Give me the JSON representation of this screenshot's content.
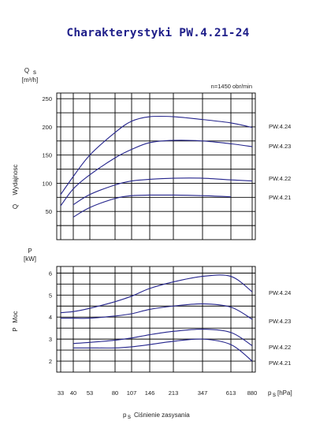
{
  "title": "Charakterystyki PW.4.21-24",
  "chart_data": [
    {
      "type": "line",
      "title": "Charakterystyki PW.4.21-24",
      "ylabel_symbol": "Q",
      "ylabel_sub": "s",
      "ylabel_unit": "[m³/h]",
      "ylabel_text": "Wydajnosc",
      "annotation": "n=1450 obr/min",
      "ylim": [
        0,
        260
      ],
      "yticks": [
        50,
        100,
        150,
        200,
        250
      ],
      "x_scale": "log",
      "grid": true,
      "series": [
        {
          "name": "PW.4.24",
          "x": [
            33,
            40,
            53,
            80,
            107,
            146,
            213,
            347,
            613,
            880
          ],
          "y": [
            80,
            112,
            150,
            190,
            210,
            218,
            218,
            213,
            207,
            199
          ]
        },
        {
          "name": "PW.4.23",
          "x": [
            33,
            40,
            53,
            80,
            107,
            146,
            213,
            347,
            613,
            880
          ],
          "y": [
            60,
            90,
            115,
            145,
            160,
            172,
            176,
            175,
            170,
            165
          ]
        },
        {
          "name": "PW.4.22",
          "x": [
            40,
            53,
            80,
            107,
            146,
            213,
            347,
            613,
            880
          ],
          "y": [
            62,
            80,
            97,
            104,
            107,
            109,
            109,
            106,
            104
          ]
        },
        {
          "name": "PW.4.21",
          "x": [
            40,
            53,
            80,
            107,
            146,
            213,
            347,
            613
          ],
          "y": [
            40,
            57,
            73,
            78,
            79,
            79,
            78,
            76
          ]
        }
      ]
    },
    {
      "type": "line",
      "ylabel_symbol": "P",
      "ylabel_unit": "[kW]",
      "ylabel_text": "Moc",
      "xlabel_symbol": "p",
      "xlabel_sub": "s",
      "xlabel": "Ciśnienie zasysania",
      "xunit": "[hPa]",
      "ylim": [
        1.5,
        6.3
      ],
      "yticks": [
        2,
        3,
        4,
        5,
        6
      ],
      "x_scale": "log",
      "xticks": [
        33,
        40,
        53,
        80,
        107,
        146,
        213,
        347,
        613,
        880
      ],
      "grid": true,
      "series": [
        {
          "name": "PW.4.24",
          "x": [
            33,
            40,
            53,
            80,
            107,
            146,
            213,
            347,
            613,
            880
          ],
          "y": [
            4.2,
            4.25,
            4.4,
            4.7,
            4.95,
            5.3,
            5.6,
            5.85,
            5.85,
            5.15
          ]
        },
        {
          "name": "PW.4.23",
          "x": [
            33,
            40,
            53,
            80,
            107,
            146,
            213,
            347,
            613,
            880
          ],
          "y": [
            3.95,
            3.95,
            3.95,
            4.05,
            4.15,
            4.35,
            4.5,
            4.6,
            4.45,
            3.9
          ]
        },
        {
          "name": "PW.4.22",
          "x": [
            40,
            53,
            80,
            107,
            146,
            213,
            347,
            613,
            880
          ],
          "y": [
            2.8,
            2.85,
            2.95,
            3.05,
            3.2,
            3.35,
            3.45,
            3.3,
            2.7
          ]
        },
        {
          "name": "PW.4.21",
          "x": [
            40,
            53,
            80,
            107,
            146,
            213,
            347,
            613,
            880
          ],
          "y": [
            2.6,
            2.6,
            2.6,
            2.65,
            2.75,
            2.9,
            3.0,
            2.75,
            2.0
          ]
        }
      ]
    }
  ]
}
